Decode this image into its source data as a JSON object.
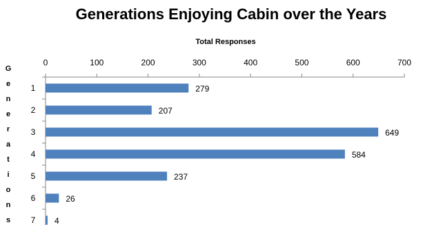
{
  "chart_data": {
    "type": "bar",
    "orientation": "horizontal",
    "title": "Generations Enjoying Cabin over the Years",
    "xlabel": "Total Responses",
    "ylabel": "Generations",
    "x_axis_position": "top",
    "xlim": [
      0,
      700
    ],
    "xticks": [
      0,
      100,
      200,
      300,
      400,
      500,
      600,
      700
    ],
    "grid": false,
    "categories": [
      "1",
      "2",
      "3",
      "4",
      "5",
      "6",
      "7"
    ],
    "values": [
      279,
      207,
      649,
      584,
      237,
      26,
      4
    ],
    "data_labels": [
      "279",
      "207",
      "649",
      "584",
      "237",
      "26",
      "4"
    ],
    "bar_color": "#4f81bd",
    "axis_color": "#868686"
  }
}
